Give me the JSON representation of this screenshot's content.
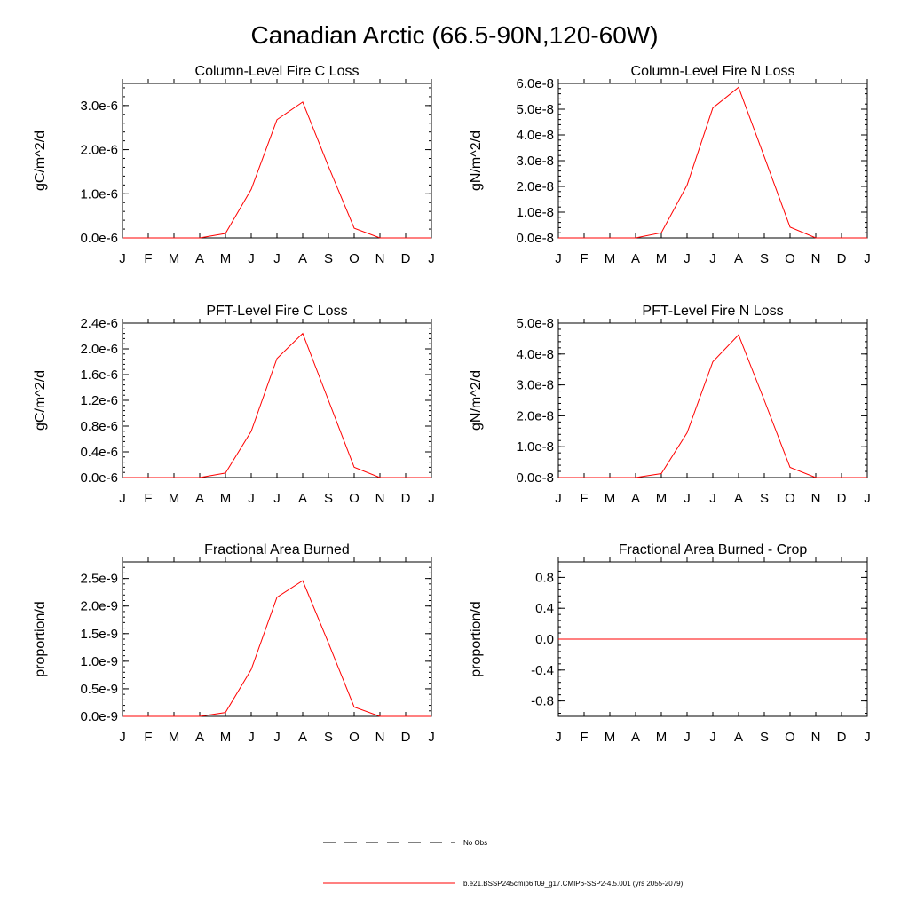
{
  "title": "Canadian Arctic (66.5-90N,120-60W)",
  "months": [
    "J",
    "F",
    "M",
    "A",
    "M",
    "J",
    "J",
    "A",
    "S",
    "O",
    "N",
    "D",
    "J"
  ],
  "colors": {
    "model": "#ff0000",
    "obs": "#000000",
    "axis": "#000000"
  },
  "legend": {
    "obs_label": "No Obs",
    "model_label": "b.e21.BSSP245cmip6.f09_g17.CMIP6-SSP2-4.5.001 (yrs 2055-2079)"
  },
  "chart_data": [
    {
      "type": "line",
      "title": "Column-Level Fire C Loss",
      "ylabel": "gC/m^2/d",
      "ylim": [
        0,
        3.5e-06
      ],
      "yticks": [
        0,
        1e-06,
        2e-06,
        3e-06
      ],
      "ytick_labels": [
        "0.0e-6",
        "1.0e-6",
        "2.0e-6",
        "3.0e-6"
      ],
      "categories": [
        "J",
        "F",
        "M",
        "A",
        "M",
        "J",
        "J",
        "A",
        "S",
        "O",
        "N",
        "D",
        "J"
      ],
      "values": [
        0,
        0,
        0,
        0,
        1e-07,
        1.1e-06,
        2.68e-06,
        3.08e-06,
        1.62e-06,
        2.2e-07,
        0,
        0,
        0
      ]
    },
    {
      "type": "line",
      "title": "Column-Level Fire N Loss",
      "ylabel": "gN/m^2/d",
      "ylim": [
        0,
        6e-08
      ],
      "yticks": [
        0,
        1e-08,
        2e-08,
        3e-08,
        4e-08,
        5e-08,
        6e-08
      ],
      "ytick_labels": [
        "0.0e-8",
        "1.0e-8",
        "2.0e-8",
        "3.0e-8",
        "4.0e-8",
        "5.0e-8",
        "6.0e-8"
      ],
      "categories": [
        "J",
        "F",
        "M",
        "A",
        "M",
        "J",
        "J",
        "A",
        "S",
        "O",
        "N",
        "D",
        "J"
      ],
      "values": [
        0,
        0,
        0,
        0,
        2e-09,
        2.05e-08,
        5.05e-08,
        5.85e-08,
        3.15e-08,
        4.2e-09,
        0,
        0,
        0
      ]
    },
    {
      "type": "line",
      "title": "PFT-Level Fire C Loss",
      "ylabel": "gC/m^2/d",
      "ylim": [
        0,
        2.4e-06
      ],
      "yticks": [
        0,
        4e-07,
        8e-07,
        1.2e-06,
        1.6e-06,
        2e-06,
        2.4e-06
      ],
      "ytick_labels": [
        "0.0e-6",
        "0.4e-6",
        "0.8e-6",
        "1.2e-6",
        "1.6e-6",
        "2.0e-6",
        "2.4e-6"
      ],
      "categories": [
        "J",
        "F",
        "M",
        "A",
        "M",
        "J",
        "J",
        "A",
        "S",
        "O",
        "N",
        "D",
        "J"
      ],
      "values": [
        0,
        0,
        0,
        0,
        7e-08,
        7.2e-07,
        1.85e-06,
        2.24e-06,
        1.2e-06,
        1.6e-07,
        0,
        0,
        0
      ]
    },
    {
      "type": "line",
      "title": "PFT-Level Fire N Loss",
      "ylabel": "gN/m^2/d",
      "ylim": [
        0,
        5e-08
      ],
      "yticks": [
        0,
        1e-08,
        2e-08,
        3e-08,
        4e-08,
        5e-08
      ],
      "ytick_labels": [
        "0.0e-8",
        "1.0e-8",
        "2.0e-8",
        "3.0e-8",
        "4.0e-8",
        "5.0e-8"
      ],
      "categories": [
        "J",
        "F",
        "M",
        "A",
        "M",
        "J",
        "J",
        "A",
        "S",
        "O",
        "N",
        "D",
        "J"
      ],
      "values": [
        0,
        0,
        0,
        0,
        1.3e-09,
        1.45e-08,
        3.75e-08,
        4.62e-08,
        2.5e-08,
        3.3e-09,
        0,
        0,
        0
      ]
    },
    {
      "type": "line",
      "title": "Fractional Area Burned",
      "ylabel": "proportion/d",
      "ylim": [
        0,
        2.8e-09
      ],
      "yticks": [
        0,
        5e-10,
        1e-09,
        1.5e-09,
        2e-09,
        2.5e-09
      ],
      "ytick_labels": [
        "0.0e-9",
        "0.5e-9",
        "1.0e-9",
        "1.5e-9",
        "2.0e-9",
        "2.5e-9"
      ],
      "categories": [
        "J",
        "F",
        "M",
        "A",
        "M",
        "J",
        "J",
        "A",
        "S",
        "O",
        "N",
        "D",
        "J"
      ],
      "values": [
        0,
        0,
        0,
        0,
        7e-11,
        8.5e-10,
        2.16e-09,
        2.46e-09,
        1.33e-09,
        1.7e-10,
        0,
        0,
        0
      ]
    },
    {
      "type": "line",
      "title": "Fractional Area Burned - Crop",
      "ylabel": "proportion/d",
      "ylim": [
        -1.0,
        1.0
      ],
      "yticks": [
        -0.8,
        -0.4,
        0.0,
        0.4,
        0.8
      ],
      "ytick_labels": [
        "-0.8",
        "-0.4",
        "0.0",
        "0.4",
        "0.8"
      ],
      "categories": [
        "J",
        "F",
        "M",
        "A",
        "M",
        "J",
        "J",
        "A",
        "S",
        "O",
        "N",
        "D",
        "J"
      ],
      "values": [
        0,
        0,
        0,
        0,
        0,
        0,
        0,
        0,
        0,
        0,
        0,
        0,
        0
      ]
    }
  ]
}
